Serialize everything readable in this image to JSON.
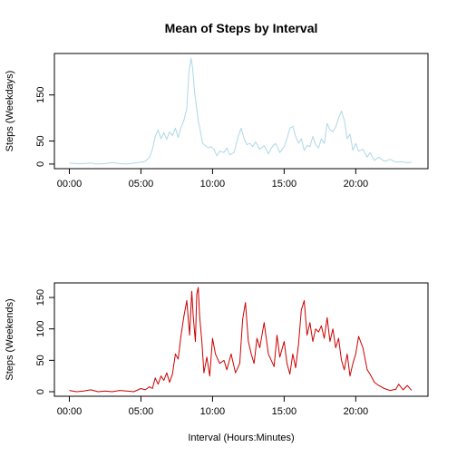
{
  "title": "Mean of Steps by Interval",
  "xlabel": "Interval (Hours:Minutes)",
  "chart_data": [
    {
      "type": "line",
      "ylabel": "Steps (Weekdays)",
      "color": "#add8e6",
      "xlim": [
        0,
        24
      ],
      "ylim": [
        0,
        230
      ],
      "x_ticks": [
        {
          "value": 0,
          "label": "00:00"
        },
        {
          "value": 5,
          "label": "05:00"
        },
        {
          "value": 10,
          "label": "10:00"
        },
        {
          "value": 15,
          "label": "15:00"
        },
        {
          "value": 20,
          "label": "20:00"
        }
      ],
      "y_ticks": [
        {
          "value": 0,
          "label": "0"
        },
        {
          "value": 50,
          "label": "50"
        },
        {
          "value": 150,
          "label": "150"
        }
      ],
      "series": [
        {
          "x": [
            0,
            0.5,
            1,
            1.5,
            2,
            2.5,
            3,
            3.5,
            4,
            4.5,
            5,
            5.3,
            5.6,
            5.8,
            6.0,
            6.2,
            6.4,
            6.6,
            6.8,
            7.0,
            7.2,
            7.4,
            7.6,
            7.8,
            8.0,
            8.2,
            8.35,
            8.5,
            8.6,
            8.75,
            8.9,
            9.0,
            9.1,
            9.2,
            9.3,
            9.5,
            9.7,
            9.9,
            10.1,
            10.3,
            10.5,
            10.8,
            11.0,
            11.2,
            11.5,
            11.8,
            12.0,
            12.2,
            12.4,
            12.6,
            12.8,
            13.0,
            13.3,
            13.6,
            13.9,
            14.1,
            14.4,
            14.7,
            15.0,
            15.2,
            15.4,
            15.6,
            15.8,
            16.0,
            16.2,
            16.4,
            16.6,
            16.8,
            17.0,
            17.2,
            17.4,
            17.6,
            17.8,
            18.0,
            18.2,
            18.4,
            18.6,
            18.8,
            19.0,
            19.2,
            19.4,
            19.6,
            19.8,
            20.0,
            20.2,
            20.5,
            20.8,
            21.0,
            21.3,
            21.6,
            22.0,
            22.4,
            22.8,
            23.2,
            23.6,
            23.9
          ],
          "y": [
            2,
            1,
            1,
            2,
            0,
            1,
            3,
            1,
            0,
            2,
            4,
            6,
            15,
            32,
            60,
            74,
            55,
            68,
            54,
            70,
            62,
            78,
            58,
            80,
            95,
            120,
            200,
            230,
            210,
            155,
            120,
            95,
            80,
            62,
            45,
            40,
            35,
            38,
            32,
            18,
            28,
            25,
            35,
            20,
            25,
            60,
            78,
            55,
            42,
            45,
            38,
            48,
            32,
            40,
            22,
            35,
            45,
            25,
            38,
            55,
            78,
            82,
            60,
            45,
            55,
            30,
            40,
            38,
            60,
            42,
            35,
            55,
            45,
            88,
            75,
            70,
            80,
            100,
            115,
            95,
            55,
            65,
            30,
            45,
            28,
            32,
            15,
            25,
            8,
            15,
            6,
            10,
            4,
            5,
            3,
            4
          ]
        }
      ]
    },
    {
      "type": "line",
      "ylabel": "Steps (Weekends)",
      "color": "#cc0000",
      "xlim": [
        0,
        24
      ],
      "ylim": [
        0,
        166
      ],
      "x_ticks": [
        {
          "value": 0,
          "label": "00:00"
        },
        {
          "value": 5,
          "label": "05:00"
        },
        {
          "value": 10,
          "label": "10:00"
        },
        {
          "value": 15,
          "label": "15:00"
        },
        {
          "value": 20,
          "label": "20:00"
        }
      ],
      "y_ticks": [
        {
          "value": 0,
          "label": "0"
        },
        {
          "value": 50,
          "label": "50"
        },
        {
          "value": 100,
          "label": "100"
        },
        {
          "value": 150,
          "label": "150"
        }
      ],
      "series": [
        {
          "x": [
            0,
            0.5,
            1,
            1.5,
            2,
            2.5,
            3,
            3.5,
            4,
            4.5,
            5,
            5.3,
            5.6,
            5.8,
            6.0,
            6.2,
            6.4,
            6.6,
            6.8,
            7.0,
            7.2,
            7.4,
            7.6,
            7.8,
            8.0,
            8.2,
            8.4,
            8.55,
            8.65,
            8.8,
            8.9,
            9.0,
            9.1,
            9.25,
            9.4,
            9.6,
            9.8,
            10.0,
            10.2,
            10.5,
            10.8,
            11.0,
            11.3,
            11.6,
            11.9,
            12.1,
            12.3,
            12.5,
            12.7,
            12.9,
            13.1,
            13.3,
            13.6,
            13.9,
            14.1,
            14.3,
            14.5,
            14.7,
            15.0,
            15.2,
            15.4,
            15.6,
            15.8,
            16.0,
            16.2,
            16.4,
            16.6,
            16.8,
            17.0,
            17.2,
            17.4,
            17.6,
            17.8,
            18.0,
            18.2,
            18.4,
            18.6,
            18.8,
            19.0,
            19.2,
            19.4,
            19.6,
            19.8,
            20.0,
            20.2,
            20.5,
            20.8,
            21.0,
            21.3,
            21.6,
            22.0,
            22.4,
            22.8,
            23.0,
            23.3,
            23.6,
            23.9
          ],
          "y": [
            2,
            0,
            1,
            3,
            0,
            1,
            0,
            2,
            1,
            0,
            5,
            3,
            8,
            5,
            22,
            12,
            25,
            18,
            30,
            15,
            28,
            60,
            52,
            90,
            120,
            145,
            90,
            160,
            120,
            80,
            155,
            166,
            120,
            80,
            30,
            55,
            25,
            85,
            60,
            45,
            50,
            35,
            60,
            30,
            45,
            115,
            142,
            80,
            60,
            45,
            85,
            70,
            110,
            60,
            50,
            40,
            90,
            55,
            80,
            45,
            28,
            60,
            38,
            75,
            130,
            145,
            90,
            110,
            80,
            100,
            95,
            105,
            85,
            118,
            80,
            100,
            70,
            85,
            50,
            35,
            60,
            25,
            45,
            60,
            88,
            70,
            35,
            28,
            15,
            10,
            5,
            2,
            4,
            12,
            3,
            10,
            2
          ]
        }
      ]
    }
  ]
}
